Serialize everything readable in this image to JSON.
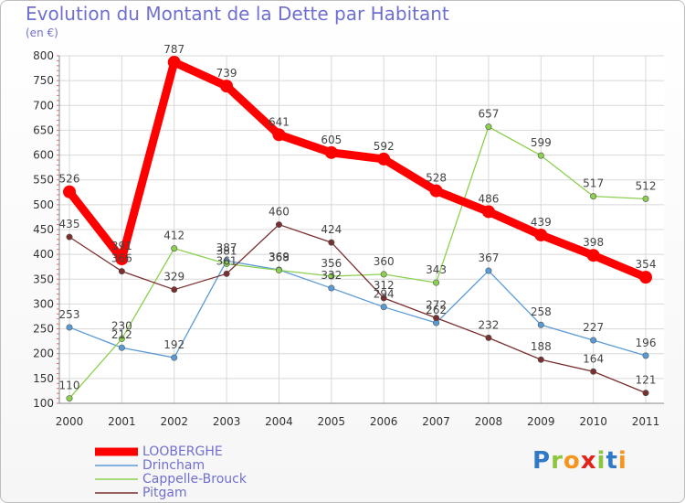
{
  "title": "Evolution du Montant de la Dette par Habitant",
  "unit_label": "(en €)",
  "brand": [
    "P",
    "r",
    "o",
    "x",
    "i",
    "t",
    "i"
  ],
  "brand_colors": [
    "#2f79c8",
    "#8cc63f",
    "#f7941d",
    "#e2231a",
    "#8cc63f",
    "#2f79c8",
    "#f7941d"
  ],
  "chart_data": {
    "type": "line",
    "title": "Evolution du Montant de la Dette par Habitant",
    "ylabel": "(en €)",
    "xlabel": "",
    "x": [
      "2000",
      "2001",
      "2002",
      "2003",
      "2004",
      "2005",
      "2006",
      "2007",
      "2008",
      "2009",
      "2010",
      "2011"
    ],
    "ylim": [
      100,
      800
    ],
    "yticks": [
      100,
      150,
      200,
      250,
      300,
      350,
      400,
      450,
      500,
      550,
      600,
      650,
      700,
      750,
      800
    ],
    "grid": true,
    "legend_position": "bottom-left",
    "series": [
      {
        "name": "LOOBERGHE",
        "color": "#ff0000",
        "values": [
          526,
          391,
          787,
          739,
          641,
          605,
          592,
          528,
          486,
          439,
          398,
          354
        ]
      },
      {
        "name": "Drincham",
        "color": "#5b9bd5",
        "values": [
          253,
          212,
          192,
          387,
          369,
          332,
          294,
          262,
          367,
          258,
          227,
          196
        ]
      },
      {
        "name": "Cappelle-Brouck",
        "color": "#8cd050",
        "values": [
          110,
          230,
          412,
          381,
          368,
          356,
          360,
          343,
          657,
          599,
          517,
          512
        ]
      },
      {
        "name": "Pitgam",
        "color": "#7a2e2e",
        "values": [
          435,
          366,
          329,
          361,
          460,
          424,
          312,
          272,
          232,
          188,
          164,
          121
        ]
      }
    ]
  }
}
